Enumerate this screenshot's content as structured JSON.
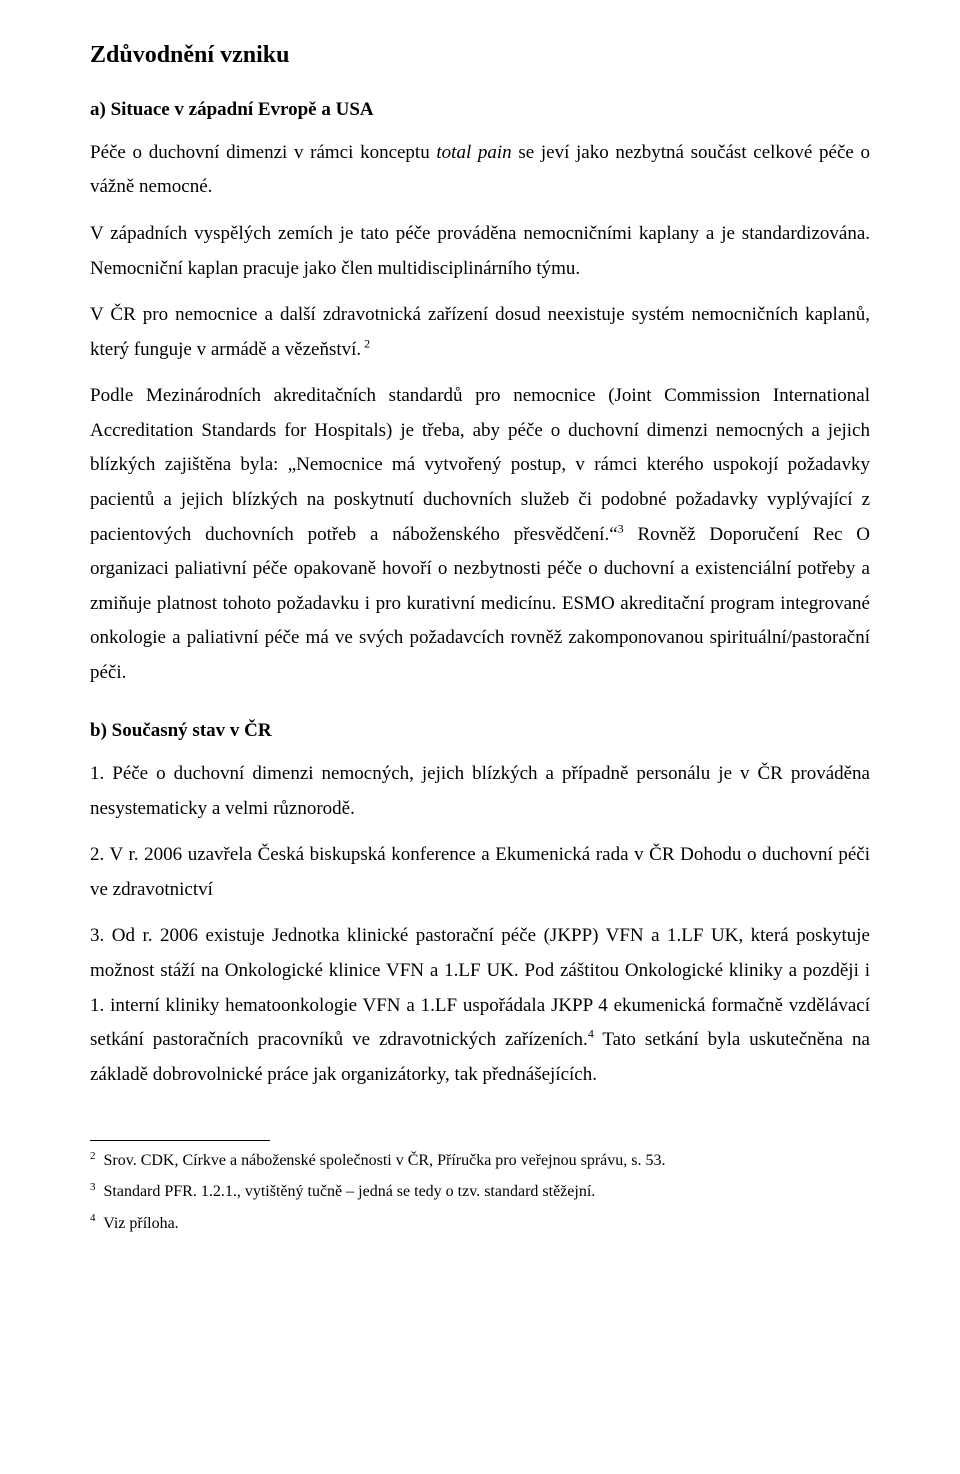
{
  "heading": "Zdůvodnění vzniku",
  "sectionA": {
    "title": "a) Situace v západní Evropě a USA",
    "p1_a": "Péče o duchovní dimenzi v rámci konceptu ",
    "p1_italic": "total pain",
    "p1_b": " se jeví jako nezbytná součást celkové péče o vážně nemocné.",
    "p2": "V západních vyspělých zemích je tato péče prováděna nemocničními kaplany a je standardizována. Nemocniční kaplan pracuje jako člen multidisciplinárního týmu.",
    "p3_a": "V ČR pro nemocnice a další zdravotnická zařízení dosud neexistuje systém nemocničních kaplanů, který funguje v armádě a vězeňství.",
    "p3_sup": " 2",
    "p4_a": "Podle Mezinárodních akreditačních standardů pro nemocnice (Joint Commission International Accreditation Standards for Hospitals) je třeba, aby péče o duchovní dimenzi nemocných a jejich blízkých zajištěna byla:  „Nemocnice má vytvořený postup, v rámci kterého uspokojí požadavky pacientů a jejich blízkých na poskytnutí duchovních služeb či podobné požadavky vyplývající z pacientových duchovních potřeb a náboženského přesvědčení.“",
    "p4_sup": "3",
    "p4_b": " Rovněž Doporučení Rec O organizaci paliativní péče opakovaně hovoří o nezbytnosti péče o duchovní a existenciální potřeby a zmiňuje platnost tohoto požadavku i pro kurativní medicínu. ESMO akreditační program integrované onkologie a paliativní péče má ve svých požadavcích rovněž zakomponovanou spirituální/pastorační péči."
  },
  "sectionB": {
    "title": "b) Současný stav v ČR",
    "p1": "1. Péče o duchovní dimenzi nemocných, jejich blízkých a případně personálu je v ČR prováděna nesystematicky a velmi různorodě.",
    "p2": "2. V r. 2006 uzavřela Česká biskupská konference a Ekumenická rada v ČR Dohodu o duchovní péči ve zdravotnictví",
    "p3_a": "3. Od r. 2006 existuje Jednotka klinické pastorační péče (JKPP) VFN a 1.LF UK, která poskytuje možnost stáží na Onkologické klinice VFN a 1.LF UK. Pod záštitou Onkologické kliniky a později i 1. interní kliniky hematoonkologie VFN a 1.LF uspořádala JKPP 4 ekumenická formačně vzdělávací setkání pastoračních pracovníků ve zdravotnických zařízeních.",
    "p3_sup": "4",
    "p3_b": " Tato setkání byla uskutečněna na základě dobrovolnické práce jak organizátorky, tak přednášejících."
  },
  "footnotes": {
    "f2": "Srov. CDK, Církve a náboženské společnosti v ČR, Příručka pro veřejnou správu, s. 53.",
    "f3": "Standard PFR. 1.2.1., vytištěný tučně – jedná se tedy o tzv. standard stěžejní.",
    "f4": "Viz příloha."
  }
}
